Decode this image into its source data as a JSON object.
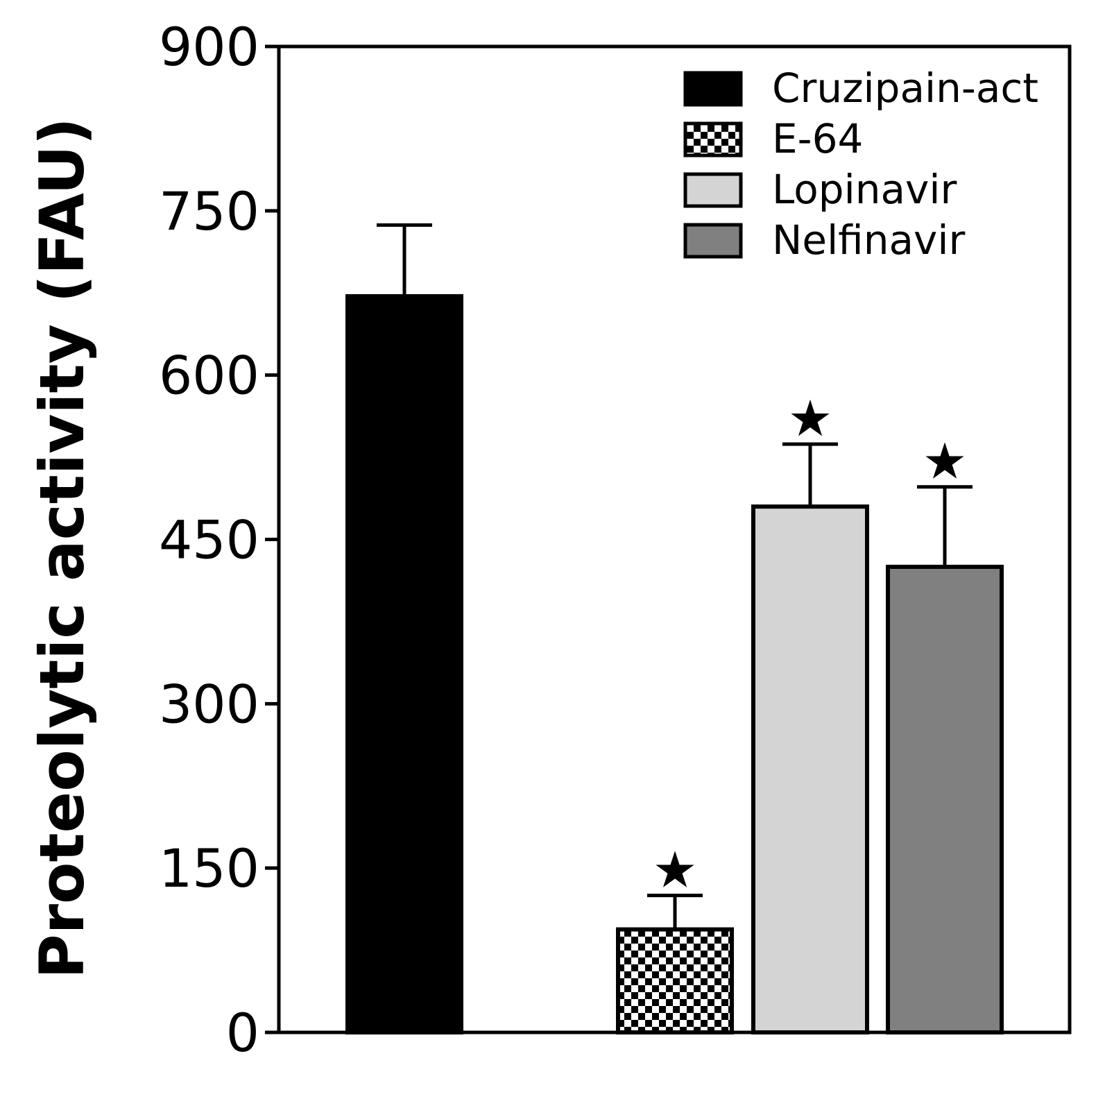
{
  "chart_data": {
    "type": "bar",
    "title": "",
    "xlabel": "",
    "ylabel": "Proteolytic activity (FAU)",
    "ylim": [
      0,
      900
    ],
    "yticks": [
      "0",
      "150",
      "300",
      "450",
      "600",
      "750",
      "900"
    ],
    "grid": false,
    "legend_position": "top-right",
    "series": [
      {
        "name": "Cruzipain-act",
        "value": 672,
        "error": 65,
        "significant": false,
        "fill": "solid",
        "color": "#000000"
      },
      {
        "name": "E-64",
        "value": 94,
        "error": 31,
        "significant": true,
        "fill": "checker",
        "color": "#000000"
      },
      {
        "name": "Lopinavir",
        "value": 480,
        "error": 57,
        "significant": true,
        "fill": "solid",
        "color": "#d4d4d4"
      },
      {
        "name": "Nelfinavir",
        "value": 425,
        "error": 73,
        "significant": true,
        "fill": "solid",
        "color": "#808080"
      }
    ],
    "significance_marker": "★"
  }
}
